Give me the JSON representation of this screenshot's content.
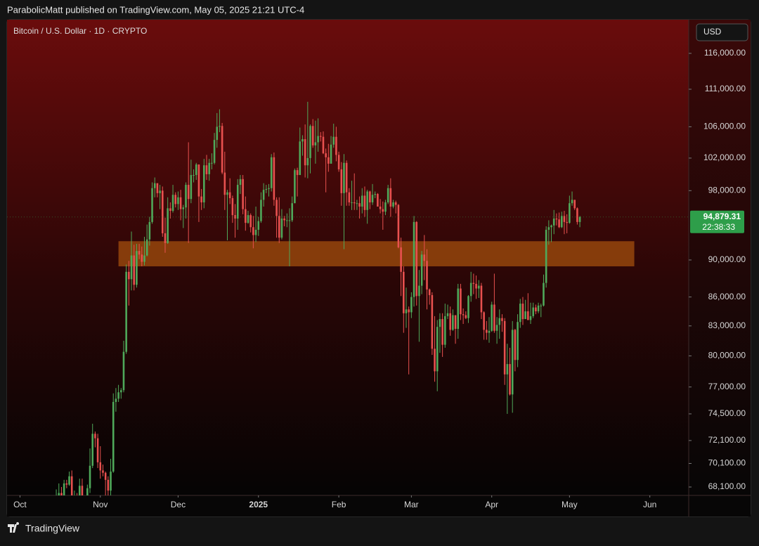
{
  "header": {
    "publisher_line": "ParabolicMatt published on TradingView.com, May 05, 2025 21:21 UTC-4"
  },
  "footer": {
    "brand": "TradingView"
  },
  "chart_data": {
    "type": "candlestick",
    "title": "Bitcoin / U.S. Dollar · 1D · CRYPTO",
    "currency": "USD",
    "log_scale": true,
    "grid": false,
    "up_color": "#4fa95a",
    "down_color": "#e8514f",
    "ylim": [
      67400,
      120900
    ],
    "yticks": [
      {
        "value": 116000,
        "label": "116,000.00"
      },
      {
        "value": 111000,
        "label": "111,000.00"
      },
      {
        "value": 106000,
        "label": "106,000.00"
      },
      {
        "value": 102000,
        "label": "102,000.00"
      },
      {
        "value": 98000,
        "label": "98,000.00"
      },
      {
        "value": 90000,
        "label": "90,000.00"
      },
      {
        "value": 86000,
        "label": "86,000.00"
      },
      {
        "value": 83000,
        "label": "83,000.00"
      },
      {
        "value": 80000,
        "label": "80,000.00"
      },
      {
        "value": 77000,
        "label": "77,000.00"
      },
      {
        "value": 74500,
        "label": "74,500.00"
      },
      {
        "value": 72100,
        "label": "72,100.00"
      },
      {
        "value": 70100,
        "label": "70,100.00"
      },
      {
        "value": 68100,
        "label": "68,100.00"
      }
    ],
    "xlim": [
      -19,
      244
    ],
    "xticks": [
      {
        "value": -14,
        "label": "Oct"
      },
      {
        "value": 17,
        "label": "Nov"
      },
      {
        "value": 47,
        "label": "Dec"
      },
      {
        "value": 78,
        "label": "2025"
      },
      {
        "value": 109,
        "label": "Feb"
      },
      {
        "value": 137,
        "label": "Mar"
      },
      {
        "value": 168,
        "label": "Apr"
      },
      {
        "value": 198,
        "label": "May"
      },
      {
        "value": 229,
        "label": "Jun"
      }
    ],
    "price_label": {
      "value": 94879.31,
      "label": "94,879.31",
      "countdown": "22:38:33",
      "color": "#2e9e4a"
    },
    "zones": [
      {
        "x": [
          24,
          223
        ],
        "y": [
          89300,
          92100
        ],
        "color": "#c0600f"
      }
    ],
    "candles": [
      [
        66000,
        67900,
        64900,
        67000
      ],
      [
        67000,
        68400,
        66800,
        67600
      ],
      [
        67600,
        68100,
        66700,
        67400
      ],
      [
        67400,
        68700,
        67100,
        68400
      ],
      [
        68400,
        68700,
        68000,
        68300
      ],
      [
        68300,
        69400,
        68200,
        69000
      ],
      [
        69000,
        69500,
        66800,
        67400
      ],
      [
        67400,
        67800,
        66600,
        67400
      ],
      [
        67400,
        67600,
        65300,
        66700
      ],
      [
        66700,
        68800,
        66500,
        68200
      ],
      [
        68200,
        68800,
        65600,
        66600
      ],
      [
        66600,
        67400,
        66500,
        67000
      ],
      [
        67000,
        68300,
        66800,
        68000
      ],
      [
        68000,
        71400,
        67600,
        69900
      ],
      [
        69900,
        73600,
        69700,
        72700
      ],
      [
        72700,
        72900,
        71500,
        72300
      ],
      [
        72300,
        72700,
        69700,
        70200
      ],
      [
        70200,
        71600,
        68800,
        69500
      ],
      [
        69500,
        70000,
        69000,
        69300
      ],
      [
        69300,
        69400,
        67400,
        68700
      ],
      [
        68700,
        69000,
        66800,
        67800
      ],
      [
        67800,
        70500,
        66900,
        69400
      ],
      [
        69400,
        76400,
        69300,
        75600
      ],
      [
        75600,
        76900,
        74700,
        75900
      ],
      [
        75900,
        77200,
        75600,
        76500
      ],
      [
        76500,
        76900,
        75900,
        76700
      ],
      [
        76700,
        81500,
        76500,
        80400
      ],
      [
        80400,
        89500,
        80200,
        88700
      ],
      [
        88700,
        89900,
        85100,
        87900
      ],
      [
        87900,
        93200,
        86700,
        90500
      ],
      [
        90500,
        91700,
        86700,
        87300
      ],
      [
        87300,
        91800,
        87000,
        91000
      ],
      [
        91000,
        91800,
        90100,
        90600
      ],
      [
        90600,
        91500,
        89300,
        89800
      ],
      [
        89800,
        92600,
        89400,
        90500
      ],
      [
        90500,
        94000,
        90400,
        92300
      ],
      [
        92300,
        94900,
        91600,
        94300
      ],
      [
        94300,
        99000,
        94100,
        98300
      ],
      [
        98300,
        99600,
        97200,
        98900
      ],
      [
        98900,
        98900,
        97200,
        97700
      ],
      [
        97700,
        98700,
        95800,
        98000
      ],
      [
        98000,
        98500,
        92600,
        93000
      ],
      [
        93000,
        94800,
        90800,
        91900
      ],
      [
        91900,
        97200,
        91800,
        95900
      ],
      [
        95900,
        96600,
        94700,
        95600
      ],
      [
        95600,
        98700,
        95400,
        97500
      ],
      [
        97500,
        97800,
        96000,
        96400
      ],
      [
        96400,
        97900,
        95700,
        97200
      ],
      [
        97200,
        98100,
        94500,
        95800
      ],
      [
        95800,
        96300,
        93600,
        96000
      ],
      [
        96000,
        99000,
        94700,
        98700
      ],
      [
        98700,
        104000,
        91900,
        97000
      ],
      [
        97000,
        101800,
        96500,
        99900
      ],
      [
        99900,
        100600,
        99000,
        99900
      ],
      [
        99900,
        101400,
        99300,
        101200
      ],
      [
        101200,
        101200,
        94300,
        97300
      ],
      [
        97300,
        98200,
        95700,
        96600
      ],
      [
        96600,
        101900,
        95900,
        101100
      ],
      [
        101100,
        102400,
        99300,
        100000
      ],
      [
        100000,
        101900,
        99200,
        101400
      ],
      [
        101400,
        102600,
        100600,
        101400
      ],
      [
        101400,
        105200,
        101200,
        104300
      ],
      [
        104300,
        107800,
        103300,
        106000
      ],
      [
        106000,
        108300,
        105300,
        106100
      ],
      [
        106100,
        106500,
        100000,
        100200
      ],
      [
        100200,
        102800,
        95700,
        97500
      ],
      [
        97500,
        98100,
        92200,
        97800
      ],
      [
        97800,
        99500,
        96400,
        97100
      ],
      [
        97100,
        97400,
        94200,
        95100
      ],
      [
        95100,
        96400,
        92500,
        94700
      ],
      [
        94700,
        99400,
        93400,
        98700
      ],
      [
        98700,
        99900,
        97600,
        99400
      ],
      [
        99400,
        99900,
        95200,
        95800
      ],
      [
        95800,
        97300,
        93300,
        94200
      ],
      [
        94200,
        95600,
        94100,
        95100
      ],
      [
        95100,
        95300,
        93100,
        93700
      ],
      [
        93700,
        95000,
        91300,
        92800
      ],
      [
        92800,
        96100,
        92000,
        93400
      ],
      [
        93400,
        94900,
        92700,
        94400
      ],
      [
        94400,
        97800,
        94200,
        96900
      ],
      [
        96900,
        98900,
        96100,
        98100
      ],
      [
        98100,
        98700,
        97700,
        98200
      ],
      [
        98200,
        98800,
        97300,
        98300
      ],
      [
        98300,
        102500,
        97900,
        102100
      ],
      [
        102100,
        102700,
        96200,
        96900
      ],
      [
        96900,
        97200,
        92500,
        95000
      ],
      [
        95000,
        97200,
        91900,
        92500
      ],
      [
        92500,
        95800,
        92300,
        94700
      ],
      [
        94700,
        95000,
        93800,
        94500
      ],
      [
        94500,
        95300,
        93700,
        94500
      ],
      [
        94500,
        95900,
        89300,
        94500
      ],
      [
        94500,
        97300,
        94300,
        96500
      ],
      [
        96500,
        100700,
        96500,
        100500
      ],
      [
        100500,
        100800,
        97300,
        99900
      ],
      [
        99900,
        105900,
        99900,
        104100
      ],
      [
        104100,
        104900,
        102300,
        104400
      ],
      [
        104400,
        106300,
        99600,
        101100
      ],
      [
        101100,
        109300,
        99500,
        102000
      ],
      [
        102000,
        106300,
        100100,
        106100
      ],
      [
        106100,
        107000,
        103300,
        103600
      ],
      [
        103600,
        106800,
        101300,
        104000
      ],
      [
        104000,
        107100,
        102800,
        104800
      ],
      [
        104800,
        105300,
        104100,
        104700
      ],
      [
        104700,
        105400,
        102500,
        102600
      ],
      [
        102600,
        103200,
        97800,
        102100
      ],
      [
        102100,
        103800,
        100300,
        101300
      ],
      [
        101300,
        104800,
        101300,
        103700
      ],
      [
        103700,
        106400,
        103300,
        104700
      ],
      [
        104700,
        106000,
        101600,
        102400
      ],
      [
        102400,
        102800,
        100300,
        100600
      ],
      [
        100600,
        101500,
        96200,
        97700
      ],
      [
        97700,
        102500,
        91200,
        101400
      ],
      [
        101400,
        101700,
        96200,
        97800
      ],
      [
        97800,
        98300,
        96200,
        96600
      ],
      [
        96600,
        99200,
        95700,
        96600
      ],
      [
        96600,
        100100,
        95700,
        96500
      ],
      [
        96500,
        96900,
        95700,
        96500
      ],
      [
        96500,
        97300,
        94700,
        96100
      ],
      [
        96100,
        98300,
        95300,
        97400
      ],
      [
        97400,
        98500,
        94900,
        95700
      ],
      [
        95700,
        98100,
        94100,
        97900
      ],
      [
        97900,
        98000,
        95800,
        96600
      ],
      [
        96600,
        98800,
        96300,
        97500
      ],
      [
        97500,
        97900,
        97100,
        97600
      ],
      [
        97600,
        97700,
        96100,
        96100
      ],
      [
        96100,
        97000,
        95300,
        95800
      ],
      [
        95800,
        96700,
        93400,
        95500
      ],
      [
        95500,
        96900,
        95100,
        96600
      ],
      [
        96600,
        98700,
        96400,
        98300
      ],
      [
        98300,
        99500,
        94900,
        96100
      ],
      [
        96100,
        96900,
        95900,
        96600
      ],
      [
        96600,
        96800,
        95300,
        96300
      ],
      [
        96300,
        96400,
        91300,
        91400
      ],
      [
        91400,
        92500,
        86100,
        88700
      ],
      [
        88700,
        89300,
        82300,
        84300
      ],
      [
        84300,
        87000,
        82800,
        84700
      ],
      [
        84700,
        85000,
        78200,
        84400
      ],
      [
        84400,
        86500,
        83800,
        86000
      ],
      [
        86000,
        95000,
        85000,
        94300
      ],
      [
        94300,
        94400,
        85100,
        86100
      ],
      [
        86100,
        88900,
        81400,
        87200
      ],
      [
        87200,
        91000,
        86300,
        90600
      ],
      [
        90600,
        92800,
        87800,
        89900
      ],
      [
        89900,
        91200,
        84700,
        86800
      ],
      [
        86800,
        86900,
        85200,
        86200
      ],
      [
        86200,
        86500,
        80100,
        80700
      ],
      [
        80700,
        84000,
        77500,
        78500
      ],
      [
        78500,
        83600,
        76600,
        82900
      ],
      [
        82900,
        84300,
        80300,
        83700
      ],
      [
        83700,
        84300,
        79900,
        81100
      ],
      [
        81100,
        85300,
        80800,
        84000
      ],
      [
        84000,
        85200,
        83700,
        84300
      ],
      [
        84300,
        85000,
        82000,
        82600
      ],
      [
        82600,
        84700,
        82500,
        84100
      ],
      [
        84100,
        84100,
        81200,
        82700
      ],
      [
        82700,
        87400,
        81700,
        86900
      ],
      [
        86900,
        87400,
        83600,
        84200
      ],
      [
        84200,
        84800,
        83200,
        84100
      ],
      [
        84100,
        84500,
        83700,
        83800
      ],
      [
        83800,
        86200,
        83300,
        86100
      ],
      [
        86100,
        88700,
        85500,
        87500
      ],
      [
        87500,
        88500,
        86300,
        87400
      ],
      [
        87400,
        88300,
        85800,
        86900
      ],
      [
        86900,
        87800,
        85900,
        87200
      ],
      [
        87200,
        87500,
        83700,
        84400
      ],
      [
        84400,
        84500,
        81600,
        82600
      ],
      [
        82600,
        83500,
        81600,
        82300
      ],
      [
        82300,
        83900,
        81300,
        82500
      ],
      [
        82500,
        85500,
        82400,
        85200
      ],
      [
        85200,
        88500,
        82300,
        82500
      ],
      [
        82500,
        83900,
        81200,
        83100
      ],
      [
        83100,
        84700,
        81700,
        83800
      ],
      [
        83800,
        84200,
        82400,
        83500
      ],
      [
        83500,
        83800,
        77200,
        78200
      ],
      [
        78200,
        81200,
        74500,
        79200
      ],
      [
        79200,
        80800,
        76200,
        76300
      ],
      [
        76300,
        83500,
        74600,
        82600
      ],
      [
        82600,
        82700,
        78500,
        79600
      ],
      [
        79600,
        84200,
        78900,
        83400
      ],
      [
        83400,
        85800,
        82800,
        85300
      ],
      [
        85300,
        86000,
        83100,
        83700
      ],
      [
        83700,
        85700,
        83700,
        84500
      ],
      [
        84500,
        86400,
        83600,
        83600
      ],
      [
        83600,
        85400,
        83200,
        84000
      ],
      [
        84000,
        85400,
        83800,
        84900
      ],
      [
        84900,
        85200,
        84200,
        84500
      ],
      [
        84500,
        85400,
        84300,
        85100
      ],
      [
        85100,
        85300,
        83900,
        85100
      ],
      [
        85100,
        88400,
        85000,
        87500
      ],
      [
        87500,
        93800,
        87000,
        93400
      ],
      [
        93400,
        94500,
        91700,
        93700
      ],
      [
        93700,
        94000,
        92000,
        93900
      ],
      [
        93900,
        95700,
        92900,
        94700
      ],
      [
        94700,
        95300,
        93900,
        94600
      ],
      [
        94600,
        95400,
        93600,
        93700
      ],
      [
        93700,
        95500,
        93600,
        95000
      ],
      [
        95000,
        95600,
        92900,
        94300
      ],
      [
        94300,
        95200,
        93000,
        94200
      ],
      [
        94200,
        97400,
        94100,
        96500
      ],
      [
        96500,
        97900,
        96200,
        96900
      ],
      [
        96900,
        96900,
        95700,
        95900
      ],
      [
        95900,
        96000,
        94000,
        94300
      ],
      [
        94300,
        95000,
        93700,
        94879.31
      ]
    ]
  }
}
